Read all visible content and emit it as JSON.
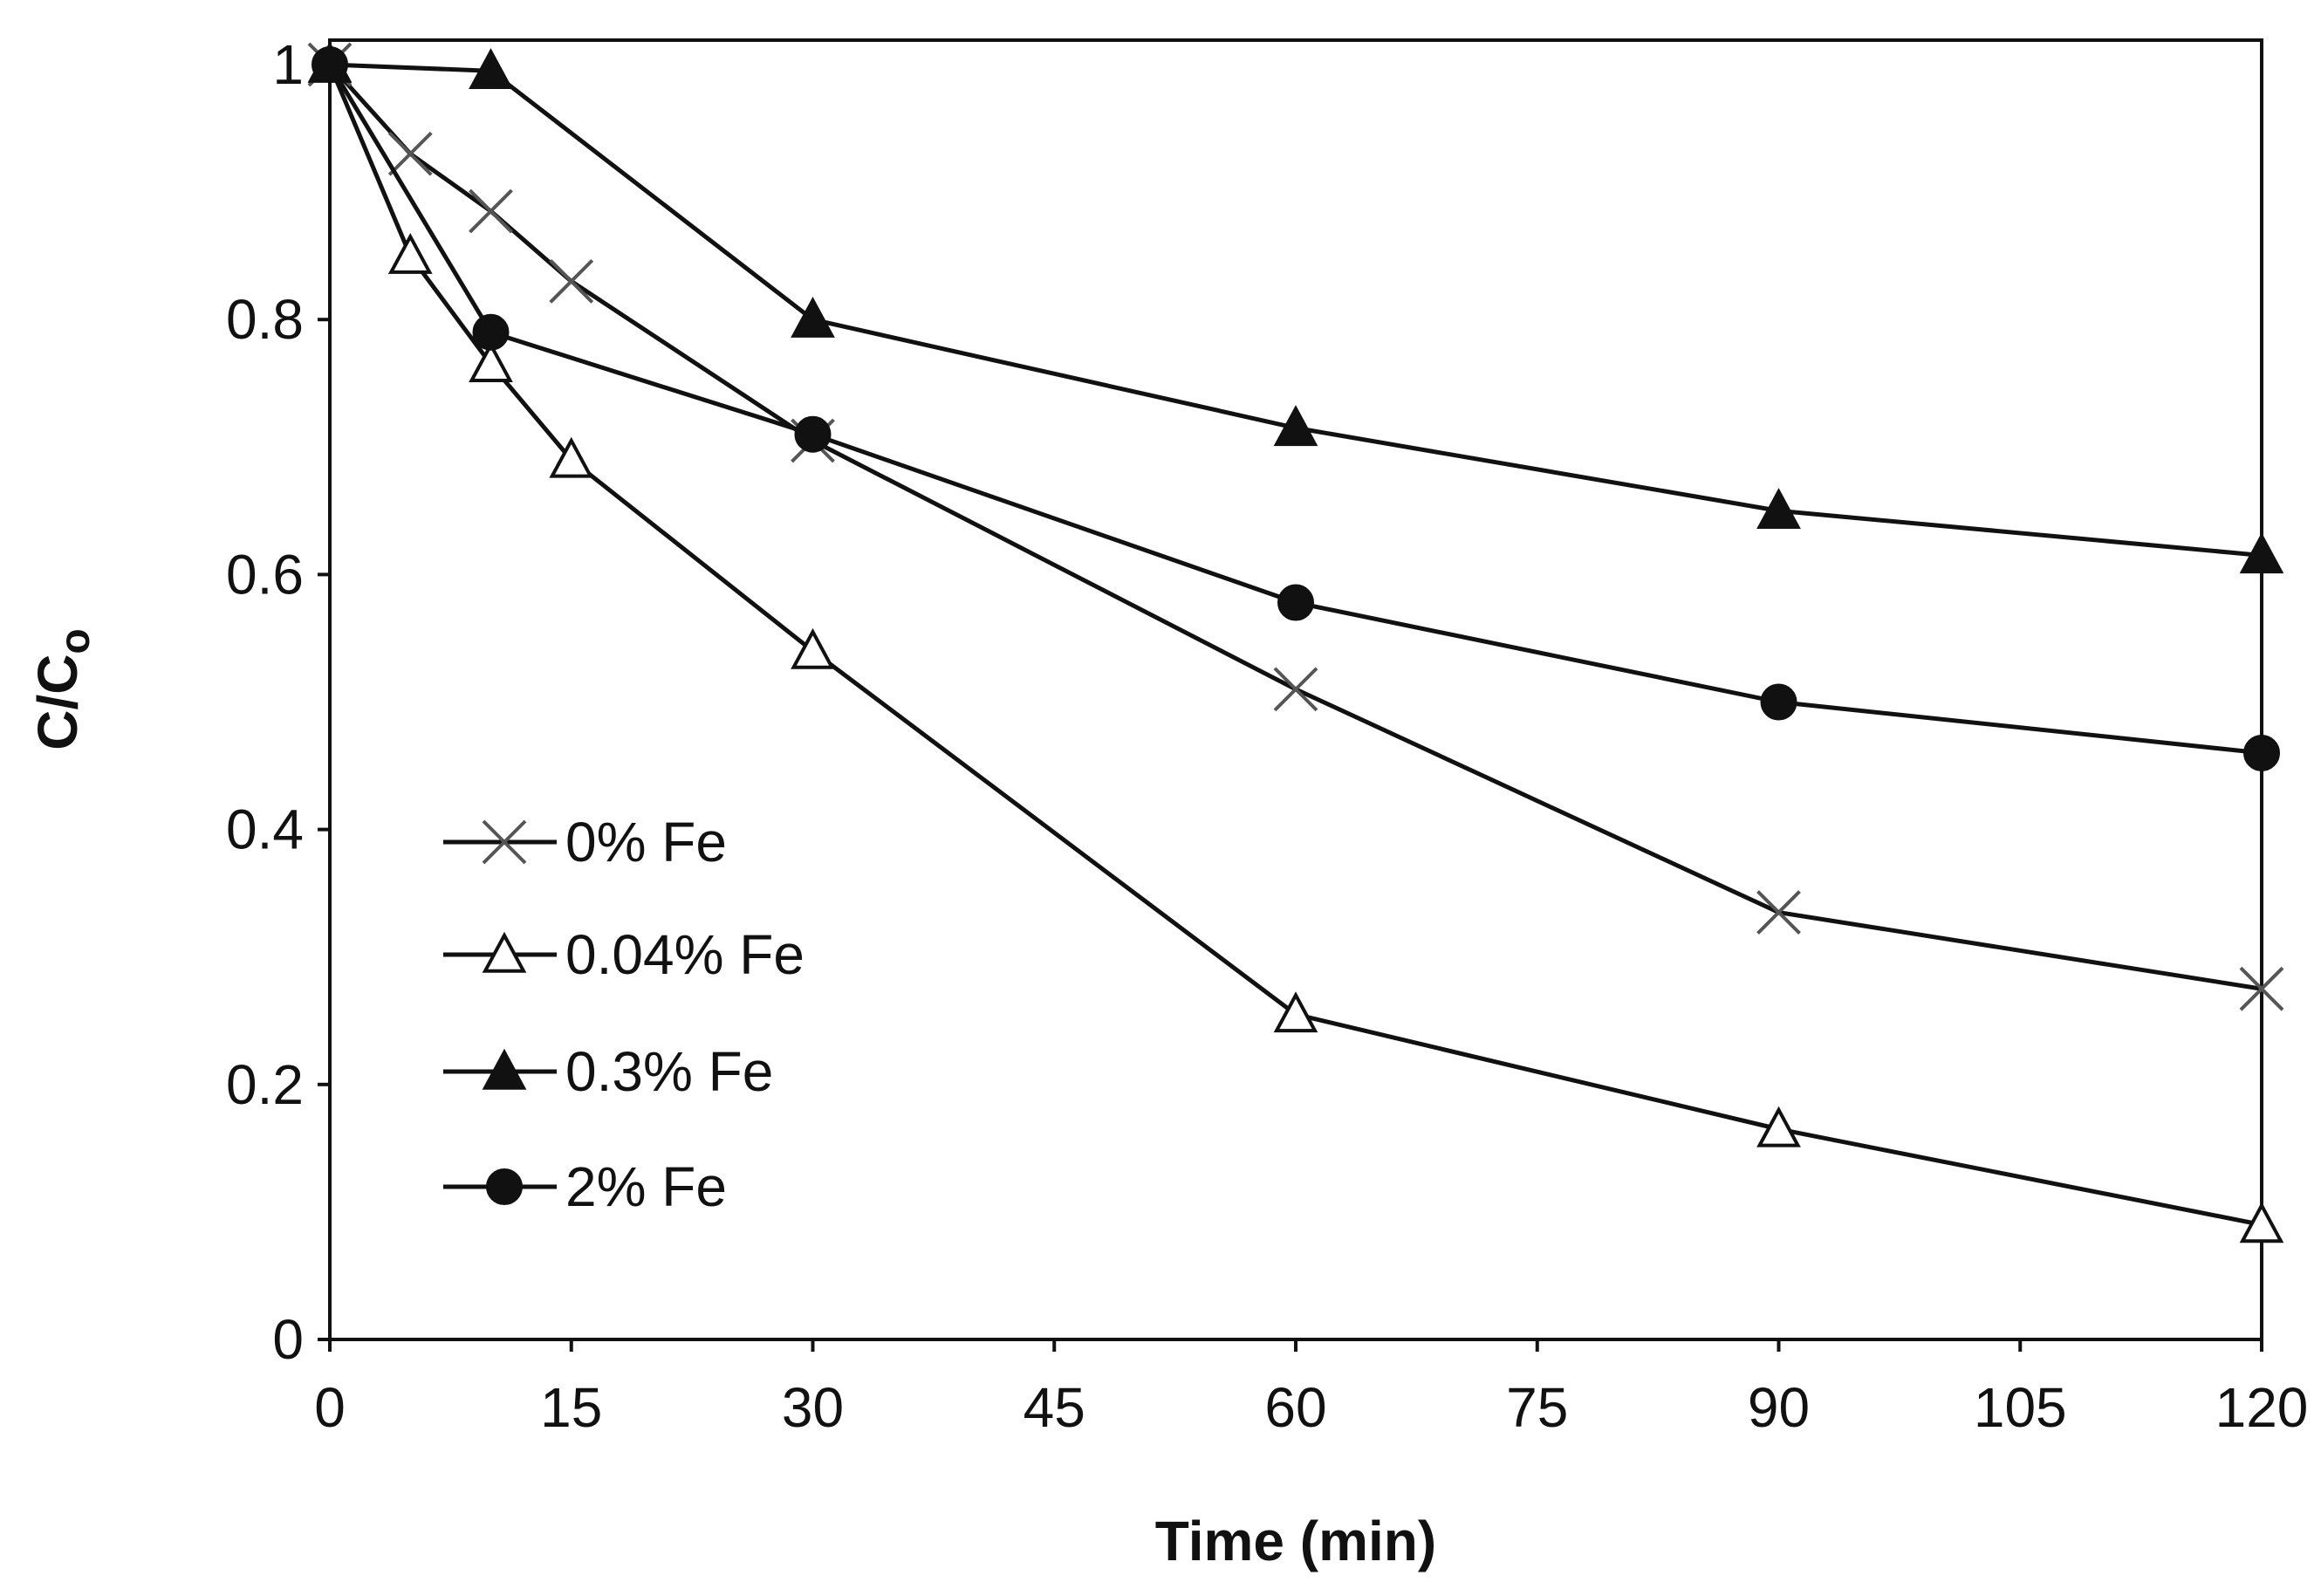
{
  "chart_data": {
    "type": "line",
    "title": "",
    "xlabel": "Time (min)",
    "ylabel": "C/C",
    "ylabel_sub": "o",
    "xlim": [
      0,
      120
    ],
    "ylim": [
      0,
      1
    ],
    "xticks": [
      0,
      15,
      30,
      45,
      60,
      75,
      90,
      105,
      120
    ],
    "yticks": [
      0,
      0.2,
      0.4,
      0.6,
      0.8,
      1
    ],
    "xtick_labels": [
      "0",
      "15",
      "30",
      "45",
      "60",
      "75",
      "90",
      "105",
      "120"
    ],
    "ytick_labels": [
      "0",
      "0.2",
      "0.4",
      "0.6",
      "0.8",
      "1"
    ],
    "grid": false,
    "legend_position": "lower-left",
    "series": [
      {
        "name": "0% Fe",
        "marker": "x",
        "x": [
          0,
          5,
          10,
          15,
          30,
          60,
          90,
          120
        ],
        "y": [
          1.0,
          0.93,
          0.885,
          0.83,
          0.705,
          0.51,
          0.335,
          0.275
        ]
      },
      {
        "name": "0.04% Fe",
        "marker": "triangle-open",
        "x": [
          0,
          5,
          10,
          15,
          30,
          60,
          90,
          120
        ],
        "y": [
          1.0,
          0.85,
          0.765,
          0.69,
          0.54,
          0.255,
          0.165,
          0.09
        ]
      },
      {
        "name": "0.3% Fe",
        "marker": "triangle-filled",
        "x": [
          0,
          10,
          30,
          60,
          90,
          120
        ],
        "y": [
          1.0,
          0.995,
          0.8,
          0.715,
          0.65,
          0.615
        ]
      },
      {
        "name": "2% Fe",
        "marker": "circle-filled",
        "x": [
          0,
          10,
          30,
          60,
          90,
          120
        ],
        "y": [
          1.0,
          0.79,
          0.71,
          0.578,
          0.5,
          0.46
        ]
      }
    ]
  },
  "colors": {
    "line": "#111111",
    "marker_fill": "#111111",
    "marker_open_fill": "#ffffff",
    "x_marker_stroke": "#555555",
    "background": "#ffffff"
  }
}
